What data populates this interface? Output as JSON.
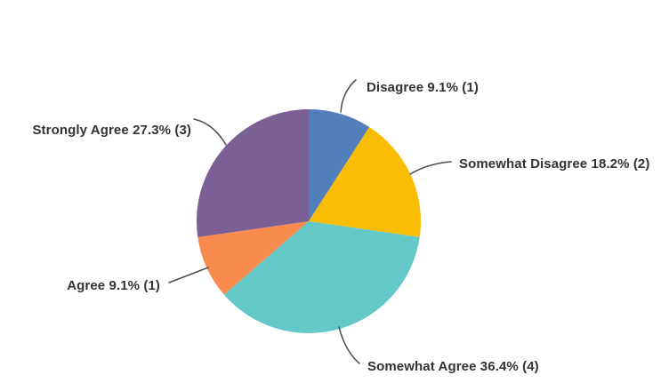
{
  "chart_data": {
    "type": "pie",
    "title": "",
    "categories": [
      "Disagree",
      "Somewhat Disagree",
      "Somewhat Agree",
      "Agree",
      "Strongly Agree"
    ],
    "values": [
      1,
      2,
      4,
      1,
      3
    ],
    "percents": [
      9.1,
      18.2,
      36.4,
      9.1,
      27.3
    ],
    "total_responses": 11,
    "start_angle_deg": 0,
    "direction": "clockwise",
    "legend_position": "callout-labels",
    "background_color": "#ffffff",
    "text_color": "#333333",
    "leader_line_color": "#4d4d4d",
    "slices": [
      {
        "label": "Disagree",
        "percent": 9.1,
        "count": 1,
        "callout": "Disagree 9.1% (1)",
        "color": "#527ebc"
      },
      {
        "label": "Somewhat Disagree",
        "percent": 18.2,
        "count": 2,
        "callout": "Somewhat Disagree 18.2% (2)",
        "color": "#fabd03"
      },
      {
        "label": "Somewhat Agree",
        "percent": 36.4,
        "count": 4,
        "callout": "Somewhat Agree 36.4% (4)",
        "color": "#65c8c8"
      },
      {
        "label": "Agree",
        "percent": 9.1,
        "count": 1,
        "callout": "Agree 9.1% (1)",
        "color": "#f98b4f"
      },
      {
        "label": "Strongly Agree",
        "percent": 27.3,
        "count": 3,
        "callout": "Strongly Agree 27.3% (3)",
        "color": "#7b6096"
      }
    ]
  }
}
